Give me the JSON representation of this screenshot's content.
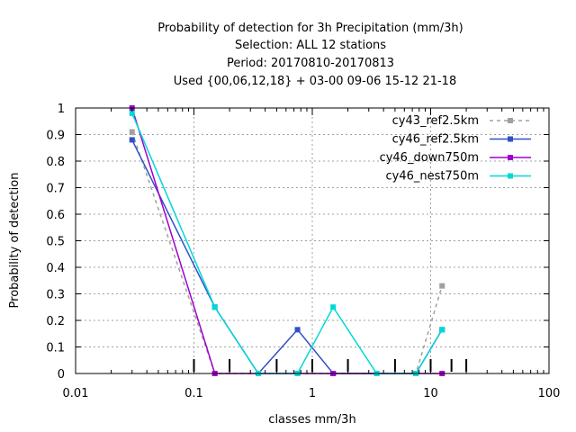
{
  "chart_data": {
    "type": "line",
    "title_lines": [
      "Probability of detection  for 3h Precipitation (mm/3h)",
      "Selection: ALL      12 stations",
      "Period: 20170810-20170813",
      "Used {00,06,12,18} + 03-00 09-06 15-12 21-18"
    ],
    "xlabel": "classes mm/3h",
    "ylabel": "Probability of detection",
    "x_scale": "log",
    "xlim": [
      0.01,
      100
    ],
    "ylim": [
      0,
      1
    ],
    "x_ticks": [
      0.01,
      0.1,
      1,
      10,
      100
    ],
    "x_tick_labels": [
      "0.01",
      "0.1",
      "1",
      "10",
      "100"
    ],
    "y_ticks": [
      0,
      0.1,
      0.2,
      0.3,
      0.4,
      0.5,
      0.6,
      0.7,
      0.8,
      0.9,
      1
    ],
    "y_tick_labels": [
      "0",
      "0.1",
      "0.2",
      "0.3",
      "0.4",
      "0.5",
      "0.6",
      "0.7",
      "0.8",
      "0.9",
      "1"
    ],
    "grid": true,
    "legend_position": "top-right",
    "class_markers": [
      0.1,
      0.2,
      0.5,
      1,
      2,
      5,
      10,
      15,
      20
    ],
    "series": [
      {
        "name": "cy43_ref2.5km",
        "color": "#a0a0a0",
        "dashed": true,
        "x": [
          0.03,
          0.15,
          0.35,
          0.75,
          1.5,
          3.5,
          7.5,
          12.5
        ],
        "y": [
          0.91,
          0.0,
          0.0,
          0.0,
          0.0,
          0.0,
          0.0,
          0.33
        ]
      },
      {
        "name": "cy46_ref2.5km",
        "color": "#3050c8",
        "dashed": false,
        "x": [
          0.03,
          0.15,
          0.35,
          0.75,
          1.5,
          3.5,
          7.5,
          12.5
        ],
        "y": [
          0.88,
          0.25,
          0.0,
          0.165,
          0.0,
          0.0,
          0.0,
          0.165
        ]
      },
      {
        "name": "cy46_down750m",
        "color": "#a000d0",
        "dashed": false,
        "x": [
          0.03,
          0.15,
          0.35,
          0.75,
          1.5,
          3.5,
          7.5,
          12.5
        ],
        "y": [
          1.0,
          0.0,
          0.0,
          0.0,
          0.0,
          0.0,
          0.0,
          0.0
        ]
      },
      {
        "name": "cy46_nest750m",
        "color": "#00d8d8",
        "dashed": false,
        "x": [
          0.03,
          0.15,
          0.35,
          0.75,
          1.5,
          3.5,
          7.5,
          12.5
        ],
        "y": [
          0.98,
          0.25,
          0.0,
          0.0,
          0.25,
          0.0,
          0.0,
          0.165
        ]
      }
    ]
  }
}
